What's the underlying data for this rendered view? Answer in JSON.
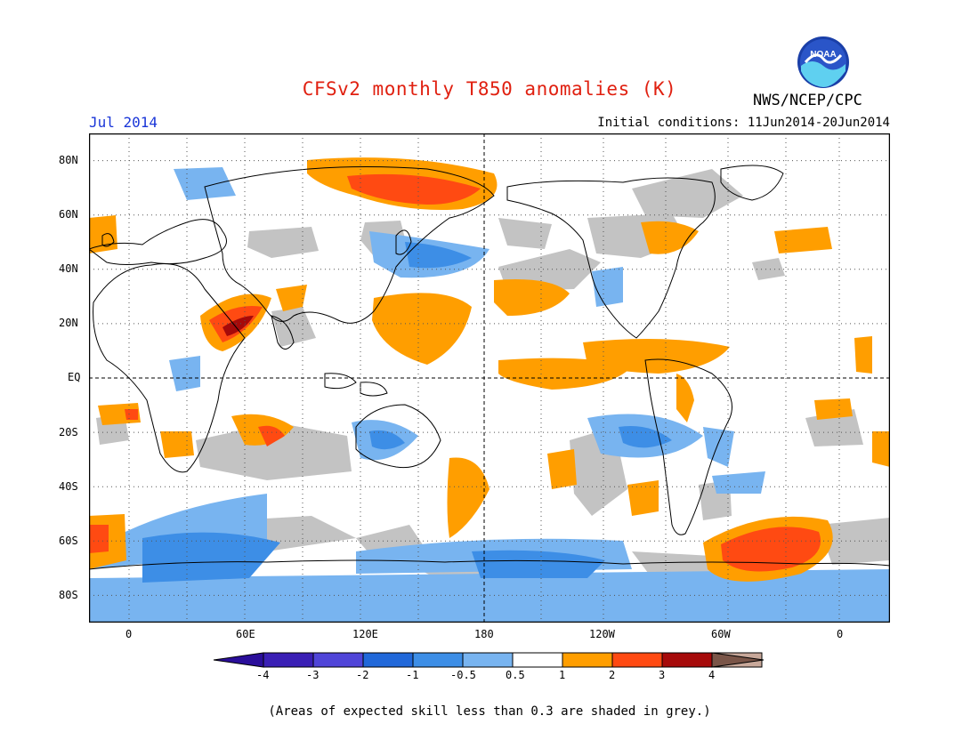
{
  "header": {
    "title": "CFSv2 monthly T850 anomalies (K)",
    "valid_period": "Jul 2014",
    "initial_conditions": "Initial conditions: 11Jun2014-20Jun2014",
    "agency": "NWS/NCEP/CPC",
    "logo_text": "NOAA"
  },
  "map": {
    "projection": "cylindrical equidistant",
    "lat_labels": [
      "80N",
      "60N",
      "40N",
      "20N",
      "EQ",
      "20S",
      "40S",
      "60S",
      "80S"
    ],
    "lon_labels": [
      "0",
      "60E",
      "120E",
      "180",
      "120W",
      "60W",
      "0"
    ],
    "dashed_reference_lines": [
      "EQ",
      "180"
    ]
  },
  "colorbar": {
    "labels": [
      "-4",
      "-3",
      "-2",
      "-1",
      "-0.5",
      "0.5",
      "1",
      "2",
      "3",
      "4"
    ],
    "colors": [
      "#3a1fb5",
      "#5045d8",
      "#2168d9",
      "#3d8ee6",
      "#78b4f0",
      "#ffffff",
      "#ff9e00",
      "#ff4a12",
      "#a60a0a",
      "#c8a89a"
    ],
    "low_arrow_color": "#2a0e9a",
    "high_arrow_color": "#7a5548",
    "skill_mask_color": "#c3c3c3"
  },
  "footnote": "(Areas of expected skill less than 0.3 are shaded in grey.)"
}
